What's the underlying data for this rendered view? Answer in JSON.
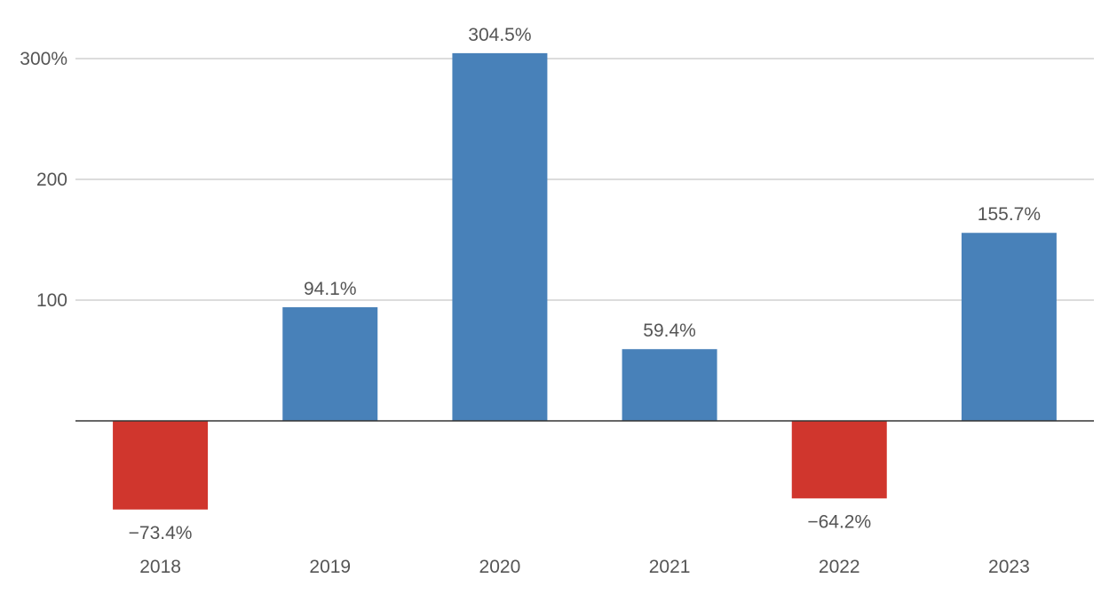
{
  "chart_data": {
    "type": "bar",
    "title": "",
    "xlabel": "",
    "ylabel": "",
    "categories": [
      "2018",
      "2019",
      "2020",
      "2021",
      "2022",
      "2023"
    ],
    "values": [
      -73.4,
      94.1,
      304.5,
      59.4,
      -64.2,
      155.7
    ],
    "value_labels": [
      "−73.4%",
      "94.1%",
      "304.5%",
      "59.4%",
      "−64.2%",
      "155.7%"
    ],
    "ylim": [
      -100,
      310
    ],
    "yticks": [
      {
        "value": 300,
        "label": "300%"
      },
      {
        "value": 200,
        "label": "200"
      },
      {
        "value": 100,
        "label": "100"
      }
    ],
    "grid": true,
    "legend": "none",
    "colors": {
      "positive": "#4881b9",
      "negative": "#d0362d",
      "gridline": "#c8c8c8",
      "baseline": "#333333",
      "text": "#555555"
    }
  }
}
